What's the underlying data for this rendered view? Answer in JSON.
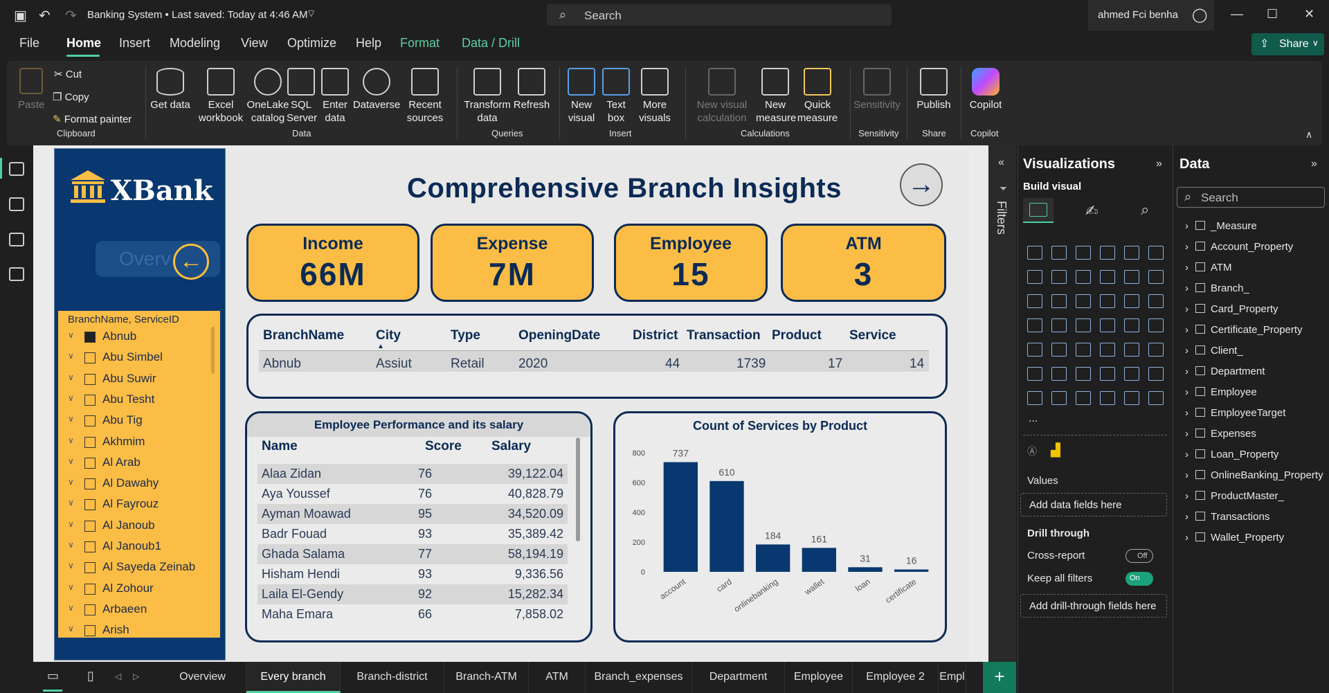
{
  "titlebar": {
    "doc_title": "Banking System • Last saved: Today at 4:46 AM",
    "search_placeholder": "Search",
    "user": "ahmed Fci benha"
  },
  "menu": [
    "File",
    "Home",
    "Insert",
    "Modeling",
    "View",
    "Optimize",
    "Help",
    "Format",
    "Data / Drill"
  ],
  "share_label": "Share",
  "ribbon": {
    "clipboard": {
      "paste": "Paste",
      "cut": "Cut",
      "copy": "Copy",
      "format_painter": "Format painter",
      "group": "Clipboard"
    },
    "data": {
      "get_data": "Get data",
      "excel": "Excel workbook",
      "onelake": "OneLake catalog",
      "sql": "SQL Server",
      "enter_data": "Enter data",
      "dataverse": "Dataverse",
      "recent": "Recent sources",
      "group": "Data"
    },
    "queries": {
      "transform": "Transform data",
      "refresh": "Refresh",
      "group": "Queries"
    },
    "insert": {
      "new_visual": "New visual",
      "text_box": "Text box",
      "more_visuals": "More visuals",
      "group": "Insert"
    },
    "calculations": {
      "new_visual_calc": "New visual calculation",
      "new_measure": "New measure",
      "quick_measure": "Quick measure",
      "group": "Calculations"
    },
    "sensitivity": {
      "label": "Sensitivity",
      "group": "Sensitivity"
    },
    "share": {
      "publish": "Publish",
      "group": "Share"
    },
    "copilot": {
      "label": "Copilot",
      "group": "Copilot"
    }
  },
  "report": {
    "logo": "XBank",
    "overview_button": "Overv",
    "title": "Comprehensive Branch Insights",
    "kpis": [
      {
        "label": "Income",
        "value": "66M"
      },
      {
        "label": "Expense",
        "value": "7M"
      },
      {
        "label": "Employee",
        "value": "15"
      },
      {
        "label": "ATM",
        "value": "3"
      }
    ],
    "slicer": {
      "title": "BranchName, ServiceID",
      "items": [
        {
          "label": "Abnub",
          "checked": true
        },
        {
          "label": "Abu Simbel",
          "checked": false
        },
        {
          "label": "Abu Suwir",
          "checked": false
        },
        {
          "label": "Abu Tesht",
          "checked": false
        },
        {
          "label": "Abu Tig",
          "checked": false
        },
        {
          "label": "Akhmim",
          "checked": false
        },
        {
          "label": "Al Arab",
          "checked": false
        },
        {
          "label": "Al Dawahy",
          "checked": false
        },
        {
          "label": "Al Fayrouz",
          "checked": false
        },
        {
          "label": "Al Janoub",
          "checked": false
        },
        {
          "label": "Al Janoub1",
          "checked": false
        },
        {
          "label": "Al Sayeda Zeinab",
          "checked": false
        },
        {
          "label": "Al Zohour",
          "checked": false
        },
        {
          "label": "Arbaeen",
          "checked": false
        },
        {
          "label": "Arish",
          "checked": false
        }
      ]
    },
    "branch_table": {
      "headers": [
        "BranchName",
        "City",
        "Type",
        "OpeningDate",
        "District",
        "Transaction",
        "Product",
        "Service"
      ],
      "row": [
        "Abnub",
        "Assiut",
        "Retail",
        "2020",
        "44",
        "1739",
        "17",
        "14"
      ]
    },
    "employee_table": {
      "title": "Employee Performance and its salary",
      "headers": [
        "Name",
        "Score",
        "Salary"
      ],
      "rows": [
        [
          "Alaa Zidan",
          "76",
          "39,122.04"
        ],
        [
          "Aya Youssef",
          "76",
          "40,828.79"
        ],
        [
          "Ayman Moawad",
          "95",
          "34,520.09"
        ],
        [
          "Badr Fouad",
          "93",
          "35,389.42"
        ],
        [
          "Ghada Salama",
          "77",
          "58,194.19"
        ],
        [
          "Hisham Hendi",
          "93",
          "9,336.56"
        ],
        [
          "Laila El-Gendy",
          "92",
          "15,282.34"
        ],
        [
          "Maha Emara",
          "66",
          "7,858.02"
        ]
      ]
    }
  },
  "chart_data": {
    "type": "bar",
    "title": "Count of Services by Product",
    "categories": [
      "account",
      "card",
      "onlinebanking",
      "wallet",
      "loan",
      "certificate"
    ],
    "values": [
      737,
      610,
      184,
      161,
      31,
      16
    ],
    "yticks": [
      0,
      200,
      400,
      600,
      800
    ],
    "ylim": [
      0,
      800
    ],
    "bar_color": "#08386f"
  },
  "panes": {
    "filters": "Filters",
    "visualizations": "Visualizations",
    "build_visual": "Build visual",
    "values_label": "Values",
    "add_data_fields": "Add data fields here",
    "drill_through": "Drill through",
    "cross_report": "Cross-report",
    "cross_report_state": "Off",
    "keep_filters": "Keep all filters",
    "keep_filters_state": "On",
    "add_drill_fields": "Add drill-through fields here",
    "more": "...",
    "data": "Data",
    "data_search": "Search",
    "tables": [
      "_Measure",
      "Account_Property",
      "ATM",
      "Branch_",
      "Card_Property",
      "Certificate_Property",
      "Client_",
      "Department",
      "Employee",
      "EmployeeTarget",
      "Expenses",
      "Loan_Property",
      "OnlineBanking_Property",
      "ProductMaster_",
      "Transactions",
      "Wallet_Property"
    ]
  },
  "tabs": [
    "Overview",
    "Every branch",
    "Branch-district",
    "Branch-ATM",
    "ATM",
    "Branch_expenses",
    "Department",
    "Employee",
    "Employee 2",
    "Empl"
  ],
  "active_tab": "Every branch",
  "colors": {
    "navy": "#0b2a55",
    "gold": "#fbbd45",
    "accent": "#4fd1a0"
  }
}
